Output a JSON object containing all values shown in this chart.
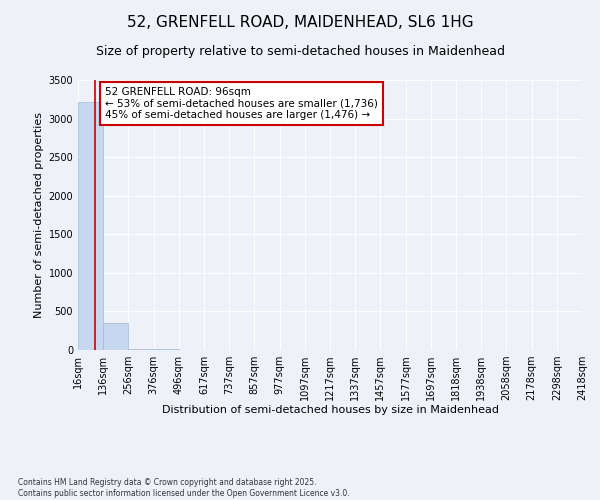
{
  "title": "52, GRENFELL ROAD, MAIDENHEAD, SL6 1HG",
  "subtitle": "Size of property relative to semi-detached houses in Maidenhead",
  "xlabel": "Distribution of semi-detached houses by size in Maidenhead",
  "ylabel": "Number of semi-detached properties",
  "footnote": "Contains HM Land Registry data © Crown copyright and database right 2025.\nContains public sector information licensed under the Open Government Licence v3.0.",
  "bar_edges": [
    16,
    136,
    256,
    376,
    496,
    617,
    737,
    857,
    977,
    1097,
    1217,
    1337,
    1457,
    1577,
    1697,
    1818,
    1938,
    2058,
    2178,
    2298,
    2418
  ],
  "bar_heights": [
    3212,
    350,
    12,
    9,
    5,
    4,
    3,
    2,
    2,
    1,
    1,
    0,
    1,
    0,
    0,
    0,
    0,
    0,
    0,
    0
  ],
  "bar_color": "#c5d8f0",
  "bar_edgecolor": "#a0b8d8",
  "property_size": 96,
  "property_line_color": "#cc0000",
  "annotation_text": "52 GRENFELL ROAD: 96sqm\n← 53% of semi-detached houses are smaller (1,736)\n45% of semi-detached houses are larger (1,476) →",
  "annotation_box_color": "#ffffff",
  "annotation_box_edgecolor": "#cc0000",
  "ylim": [
    0,
    3500
  ],
  "yticks": [
    0,
    500,
    1000,
    1500,
    2000,
    2500,
    3000,
    3500
  ],
  "bg_color": "#eef2f8",
  "plot_bg_color": "#eef2f8",
  "title_fontsize": 11,
  "subtitle_fontsize": 9,
  "tick_fontsize": 7,
  "label_fontsize": 8,
  "annotation_fontsize": 7.5,
  "footnote_fontsize": 5.5
}
